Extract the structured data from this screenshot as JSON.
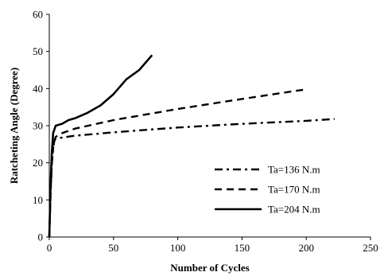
{
  "chart_data": {
    "type": "line",
    "xlabel": "Number of Cycles",
    "ylabel": "Ratcheting Angle (Degree)",
    "xlim": [
      0,
      250
    ],
    "ylim": [
      0,
      60
    ],
    "xticks": [
      "0",
      "50",
      "100",
      "150",
      "200",
      "250"
    ],
    "yticks": [
      "0",
      "10",
      "20",
      "30",
      "40",
      "50",
      "60"
    ],
    "grid": false,
    "legend_position": "bottom-right",
    "series": [
      {
        "name": "Ta=136 N.m",
        "style": "dashdot",
        "color": "#000000",
        "points": [
          [
            0,
            0
          ],
          [
            1,
            12
          ],
          [
            2,
            20
          ],
          [
            3,
            24
          ],
          [
            4,
            26
          ],
          [
            5,
            26.5
          ],
          [
            10,
            26.8
          ],
          [
            20,
            27.3
          ],
          [
            50,
            28.2
          ],
          [
            100,
            29.5
          ],
          [
            150,
            30.5
          ],
          [
            200,
            31.3
          ],
          [
            222,
            31.8
          ]
        ]
      },
      {
        "name": "Ta=170 N.m",
        "style": "dashed",
        "color": "#000000",
        "points": [
          [
            0,
            0
          ],
          [
            1,
            12
          ],
          [
            2,
            20
          ],
          [
            3,
            24
          ],
          [
            4,
            26
          ],
          [
            5,
            27
          ],
          [
            10,
            28
          ],
          [
            20,
            29.2
          ],
          [
            50,
            31.5
          ],
          [
            100,
            34.5
          ],
          [
            150,
            37.2
          ],
          [
            200,
            39.8
          ]
        ]
      },
      {
        "name": "Ta=204 N.m",
        "style": "solid",
        "color": "#000000",
        "points": [
          [
            0,
            0
          ],
          [
            1,
            14
          ],
          [
            2,
            23
          ],
          [
            3,
            28
          ],
          [
            5,
            30
          ],
          [
            10,
            30.5
          ],
          [
            15,
            31.5
          ],
          [
            20,
            32
          ],
          [
            30,
            33.5
          ],
          [
            40,
            35.5
          ],
          [
            50,
            38.5
          ],
          [
            60,
            42.5
          ],
          [
            70,
            45
          ],
          [
            80,
            49
          ]
        ]
      }
    ]
  }
}
